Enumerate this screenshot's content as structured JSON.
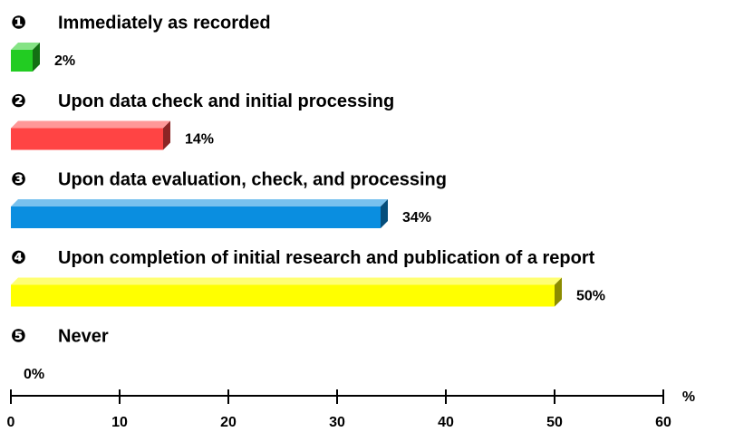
{
  "chart_data": {
    "type": "bar3d",
    "markers": [
      "❶",
      "❷",
      "❸",
      "❹",
      "❺"
    ],
    "categories": [
      "Immediately as recorded",
      "Upon data check and initial processing",
      "Upon data evaluation, check, and processing",
      "Upon completion of initial research and publication of a report",
      "Never"
    ],
    "values": [
      2,
      14,
      34,
      50,
      0
    ],
    "value_labels": [
      "2%",
      "14%",
      "34%",
      "50%",
      "0%"
    ],
    "colors": [
      "#22cc22",
      "#ff4444",
      "#0a8ee0",
      "#ffff00",
      "#888888"
    ],
    "xlabel": "%",
    "xlim": [
      0,
      60
    ],
    "xticks": [
      0,
      10,
      20,
      30,
      40,
      50,
      60
    ]
  }
}
